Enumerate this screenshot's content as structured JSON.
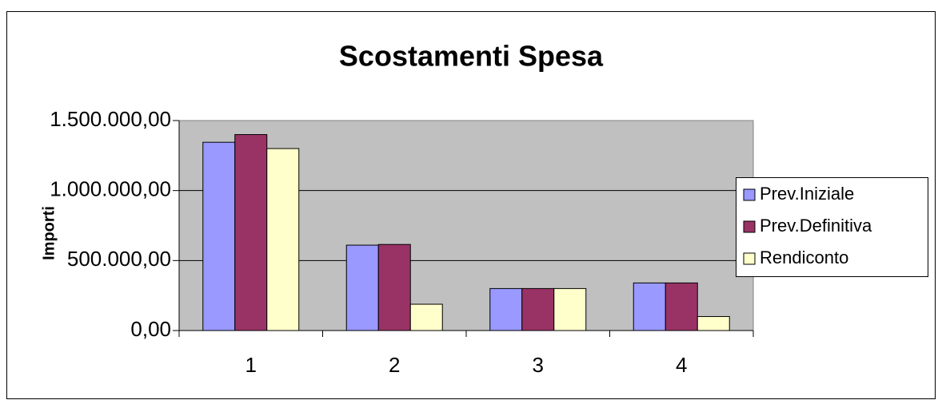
{
  "chart_data": {
    "type": "bar",
    "title": "Scostamenti Spesa",
    "y_label": "Importi",
    "categories": [
      "1",
      "2",
      "3",
      "4"
    ],
    "series": [
      {
        "name": "Prev.Iniziale",
        "color": "#9999ff",
        "values": [
          1345000,
          610000,
          300000,
          340000
        ]
      },
      {
        "name": "Prev.Definitiva",
        "color": "#993366",
        "values": [
          1400000,
          615000,
          300000,
          340000
        ]
      },
      {
        "name": "Rendiconto",
        "color": "#ffffcc",
        "values": [
          1300000,
          188000,
          300000,
          100000
        ]
      }
    ],
    "ylim": [
      0,
      1500000
    ],
    "yticks": [
      {
        "value": 0,
        "label": "0,00"
      },
      {
        "value": 500000,
        "label": "500.000,00"
      },
      {
        "value": 1000000,
        "label": "1.000.000,00"
      },
      {
        "value": 1500000,
        "label": "1.500.000,00"
      }
    ],
    "grid": true,
    "plot_background": "#c0c0c0",
    "legend": "right"
  }
}
